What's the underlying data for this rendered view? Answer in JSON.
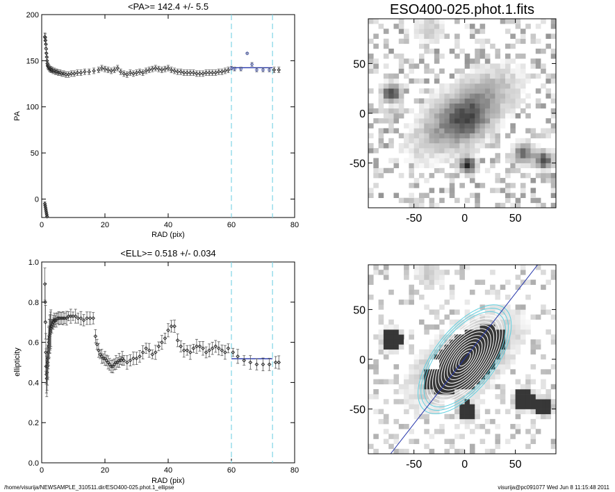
{
  "chart_data": [
    {
      "type": "scatter",
      "title": "<PA>= 142.4 +/-   5.5",
      "xlabel": "RAD (pix)",
      "ylabel": "PA",
      "xlim": [
        0,
        80
      ],
      "ylim": [
        -20,
        200
      ],
      "xticks": [
        0,
        20,
        40,
        60,
        80
      ],
      "yticks": [
        0,
        50,
        100,
        150,
        200
      ],
      "vlines": [
        60,
        73
      ],
      "fit": {
        "x": [
          60,
          73
        ],
        "y": 142.4
      },
      "series": [
        {
          "x": [
            1.0,
            1.1,
            1.2,
            1.3,
            1.4,
            1.5,
            1.6,
            1.7,
            1.8,
            1.9,
            2.0,
            2.2,
            2.4,
            2.6,
            2.8,
            3.0,
            3.3,
            3.6,
            4.0,
            4.4,
            4.8,
            5.3,
            5.8,
            6.4,
            7.0,
            7.7,
            8.5,
            9.4,
            10.3,
            11.3,
            12.4,
            13.6,
            15.0,
            16.5,
            18.0,
            19.0,
            20.0,
            21.0,
            22.0,
            23.0,
            24.0,
            25.0,
            26.0,
            27.0,
            28.0,
            29.0,
            30.0,
            31.0,
            32.0,
            33.0,
            34.0,
            35.0,
            36.0,
            37.0,
            38.0,
            39.0,
            40.0,
            41.0,
            42.0,
            43.0,
            44.0,
            45.0,
            46.0,
            47.0,
            48.0,
            49.0,
            50.0,
            51.0,
            52.0,
            53.0,
            54.0,
            55.0,
            56.0,
            57.0,
            58.0,
            59.0
          ],
          "y": [
            176,
            175,
            172,
            168,
            163,
            158,
            154,
            150,
            147,
            145,
            144,
            143,
            142,
            141,
            141,
            140,
            140,
            139,
            139,
            138,
            138,
            137,
            137,
            136,
            136,
            135,
            135,
            136,
            136,
            137,
            137,
            138,
            138,
            139,
            140,
            142,
            141,
            140,
            139,
            140,
            142,
            138,
            136,
            135,
            137,
            136,
            137,
            138,
            137,
            139,
            140,
            141,
            142,
            141,
            140,
            141,
            142,
            140,
            139,
            138,
            138,
            137,
            137,
            137,
            137,
            136,
            136,
            136,
            137,
            137,
            137,
            137,
            138,
            138,
            139,
            140
          ],
          "yerr": [
            4,
            4,
            4,
            4,
            4,
            4,
            4,
            3,
            3,
            3,
            3,
            3,
            3,
            3,
            3,
            3,
            3,
            3,
            3,
            3,
            3,
            3,
            3,
            3,
            3,
            3,
            3,
            3,
            3,
            3,
            3,
            3,
            3,
            3,
            3,
            3,
            3,
            3,
            3,
            3,
            3,
            3,
            3,
            3,
            3,
            3,
            3,
            3,
            3,
            3,
            3,
            3,
            3,
            3,
            3,
            3,
            3,
            3,
            3,
            3,
            3,
            3,
            3,
            3,
            3,
            3,
            3,
            3,
            3,
            3,
            3,
            3,
            3,
            3,
            3,
            3
          ]
        },
        {
          "x": [
            1.0,
            1.1,
            1.2,
            1.3,
            1.4,
            1.5,
            1.6,
            1.7
          ],
          "y": [
            -5,
            -7,
            -9,
            -11,
            -13,
            -15,
            -17,
            -19
          ],
          "yerr": [
            2,
            2,
            2,
            2,
            2,
            2,
            2,
            2
          ]
        },
        {
          "x": [
            60,
            61,
            63,
            65,
            66.5,
            68,
            70,
            72
          ],
          "y": [
            142,
            141,
            141,
            158,
            146,
            140,
            140,
            140
          ],
          "yerr": [
            2,
            2,
            2,
            1,
            2,
            2,
            2,
            2
          ]
        },
        {
          "x": [
            73.5,
            75
          ],
          "y": [
            140,
            140
          ],
          "yerr": [
            3,
            3
          ]
        }
      ]
    },
    {
      "type": "scatter",
      "title": "<ELL>= 0.518 +/-  0.034",
      "xlabel": "RAD (pix)",
      "ylabel": "ellipticity",
      "xlim": [
        0,
        80
      ],
      "ylim": [
        0.0,
        1.0
      ],
      "xticks": [
        0,
        20,
        40,
        60,
        80
      ],
      "yticks": [
        0.0,
        0.2,
        0.4,
        0.6,
        0.8,
        1.0
      ],
      "vlines": [
        60,
        73
      ],
      "fit": {
        "x": [
          60,
          73
        ],
        "y": 0.518
      },
      "series": [
        {
          "x": [
            1.0,
            1.1,
            1.2,
            1.3,
            1.4,
            1.5,
            1.6,
            1.7,
            1.8,
            1.9,
            2.0,
            2.1,
            2.2,
            2.3,
            2.4,
            2.5,
            2.6,
            2.7,
            2.8,
            2.9,
            3.0,
            3.2,
            3.4,
            3.6,
            3.8,
            4.0,
            4.3,
            4.6,
            5.0,
            5.4,
            5.8,
            6.3,
            6.8,
            7.3,
            7.9,
            8.5,
            9.2,
            9.9,
            10.7,
            11.5,
            12.4,
            13.3,
            14.3,
            15.3,
            16.3,
            17.0,
            17.5,
            18.0,
            18.5,
            19.0,
            19.5,
            20.0,
            20.5,
            21.0,
            21.5,
            22.0,
            22.5,
            23.0,
            23.5,
            24.0,
            24.5,
            25.0,
            25.5,
            26.0,
            27.0,
            28.0,
            29.0,
            30.0,
            31.0,
            32.0,
            33.0,
            34.0,
            35.0,
            36.0,
            37.0,
            38.0,
            39.0,
            40.0,
            41.0,
            42.0,
            43.0,
            44.0,
            45.0,
            46.0,
            47.0,
            48.0,
            49.0,
            50.0,
            51.0,
            52.0,
            53.0,
            54.0,
            55.0,
            56.0,
            57.0,
            58.0,
            59.0
          ],
          "y": [
            0.89,
            0.8,
            0.7,
            0.55,
            0.48,
            0.44,
            0.42,
            0.45,
            0.48,
            0.5,
            0.52,
            0.55,
            0.58,
            0.6,
            0.62,
            0.63,
            0.64,
            0.65,
            0.66,
            0.67,
            0.68,
            0.68,
            0.69,
            0.7,
            0.7,
            0.71,
            0.71,
            0.71,
            0.72,
            0.72,
            0.72,
            0.72,
            0.72,
            0.72,
            0.72,
            0.73,
            0.73,
            0.73,
            0.73,
            0.72,
            0.72,
            0.71,
            0.72,
            0.72,
            0.72,
            0.63,
            0.59,
            0.56,
            0.54,
            0.53,
            0.52,
            0.52,
            0.51,
            0.5,
            0.49,
            0.48,
            0.48,
            0.49,
            0.5,
            0.5,
            0.51,
            0.51,
            0.52,
            0.51,
            0.5,
            0.51,
            0.52,
            0.52,
            0.53,
            0.55,
            0.57,
            0.56,
            0.54,
            0.55,
            0.58,
            0.6,
            0.62,
            0.66,
            0.68,
            0.68,
            0.61,
            0.58,
            0.56,
            0.56,
            0.55,
            0.57,
            0.58,
            0.58,
            0.57,
            0.55,
            0.56,
            0.57,
            0.58,
            0.57,
            0.56,
            0.55,
            0.57
          ]
        },
        {
          "x": [
            60.5,
            62,
            64,
            66,
            68,
            70,
            72,
            74,
            75
          ],
          "y": [
            0.55,
            0.53,
            0.51,
            0.5,
            0.49,
            0.49,
            0.49,
            0.5,
            0.5
          ]
        }
      ]
    },
    {
      "type": "heatmap",
      "title": "ESO400-025.phot.1.fits",
      "xlim": [
        -95,
        90
      ],
      "ylim": [
        -95,
        95
      ],
      "xticks": [
        -50,
        0,
        50
      ],
      "yticks": [
        -50,
        0,
        50
      ]
    },
    {
      "type": "heatmap",
      "title": "",
      "xlim": [
        -95,
        90
      ],
      "ylim": [
        -95,
        95
      ],
      "xticks": [
        -50,
        0,
        50
      ],
      "yticks": [
        -50,
        0,
        50
      ]
    }
  ],
  "footer": {
    "left": "/home/visurija/NEWSAMPLE_310511.dir/ESO400-025.phot.1_ellipse",
    "right": "visurija@pc091077  Wed Jun  8 11:15:48 2011"
  },
  "colors": {
    "vline": "#7fd4e6",
    "fit": "#2233aa",
    "highlight": "#5566bb",
    "contour_inner": "#ffffff",
    "contour_outer": "#5fd0e0"
  }
}
